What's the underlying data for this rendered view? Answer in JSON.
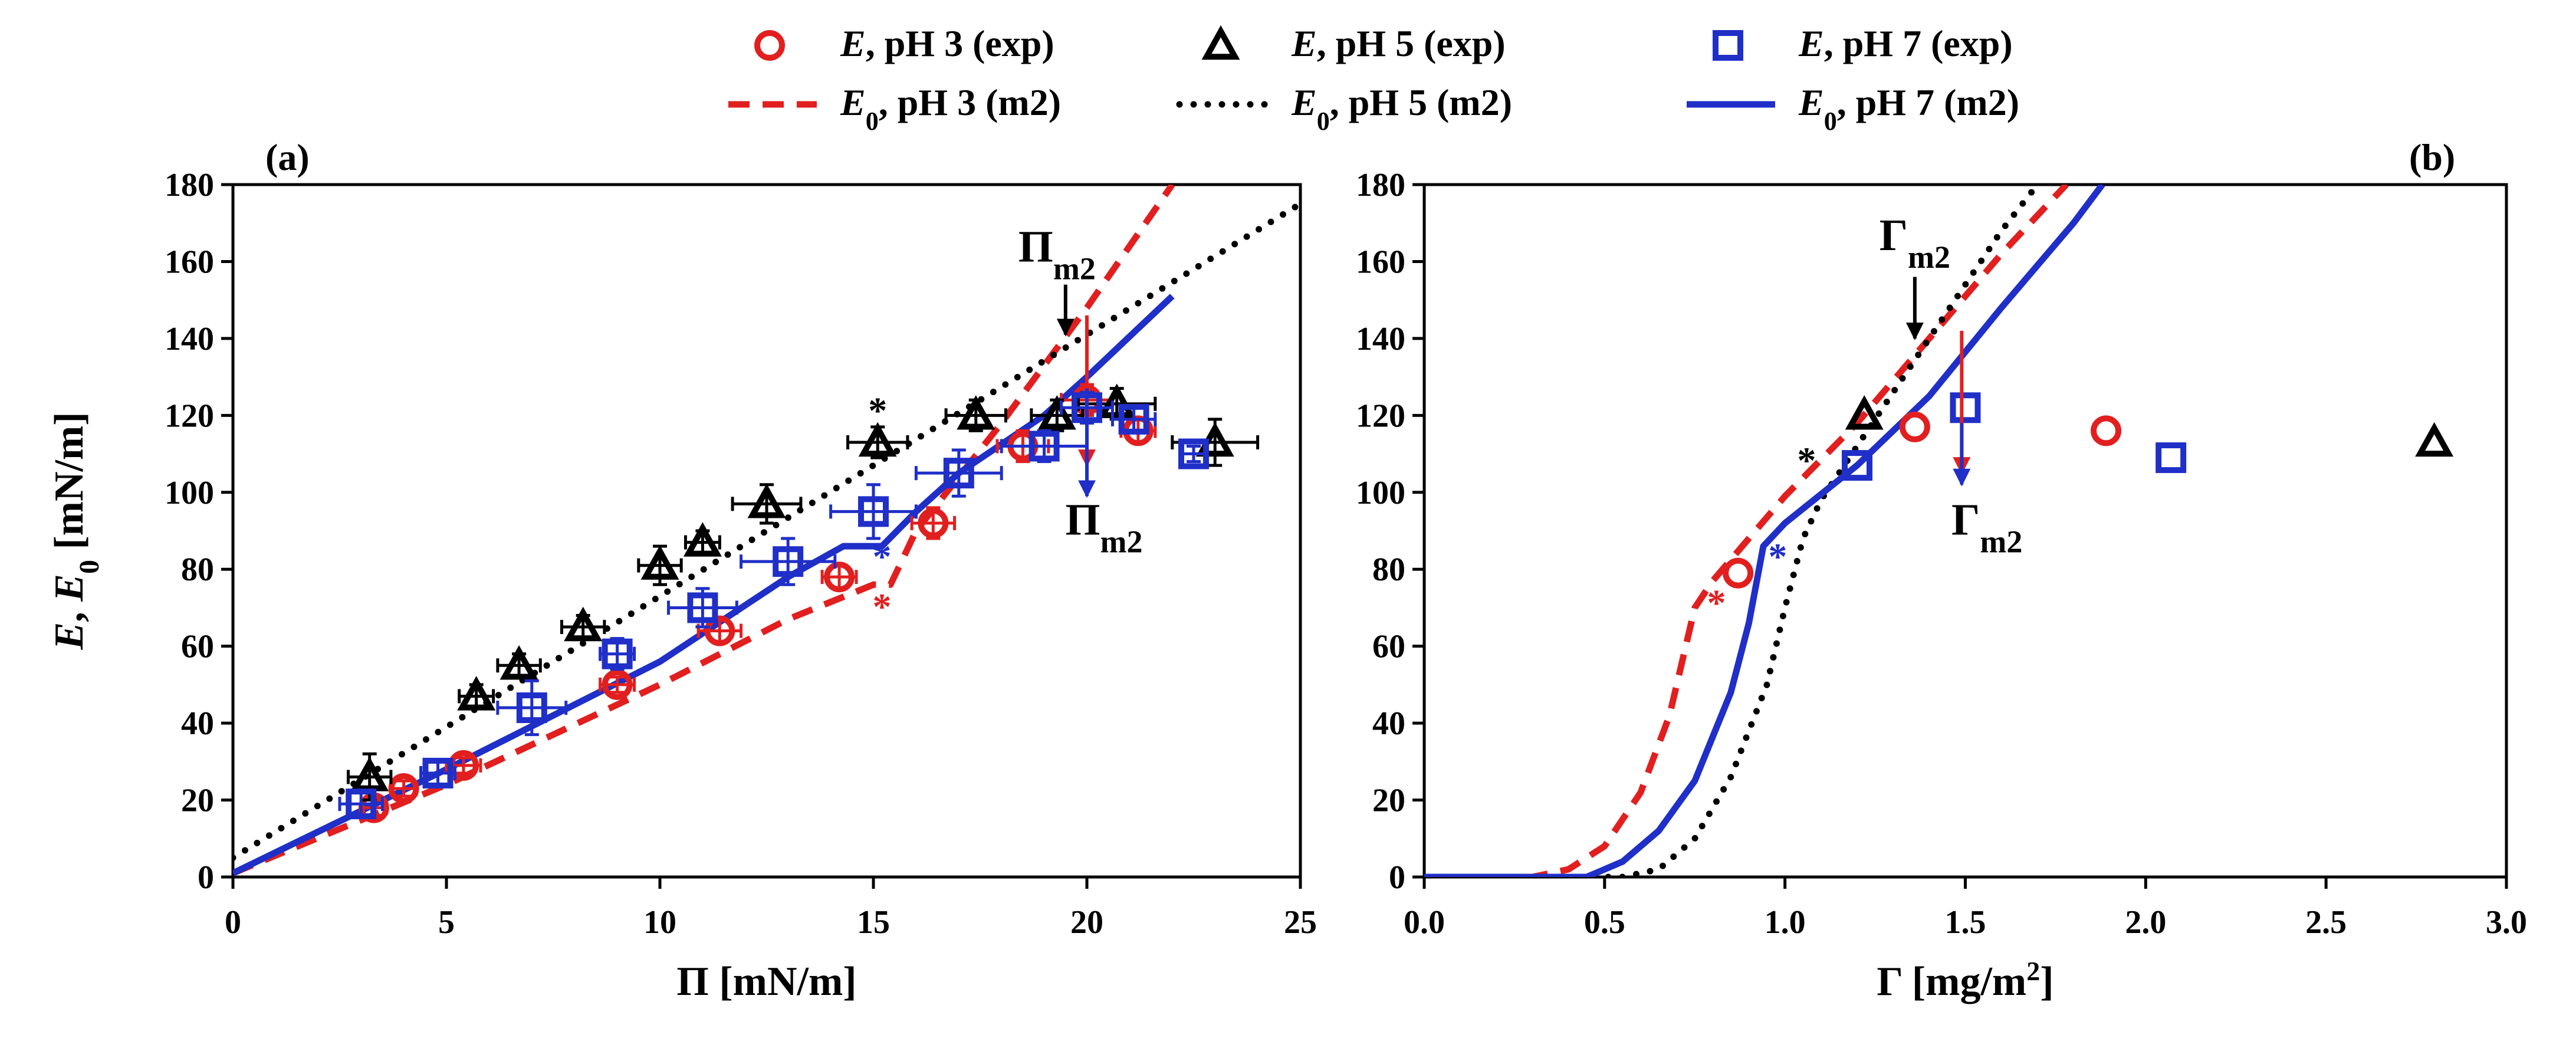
{
  "colors": {
    "pH3": "#e21f1f",
    "pH5": "#000000",
    "pH7": "#1f2fc8"
  },
  "legend": [
    {
      "name": "legend-exp-ph3",
      "kind": "circle",
      "series": "pH3",
      "label_var": "E",
      "label_sub": "",
      "label_rest": ", pH 3 (exp)"
    },
    {
      "name": "legend-exp-ph5",
      "kind": "triangle",
      "series": "pH5",
      "label_var": "E",
      "label_sub": "",
      "label_rest": ", pH 5 (exp)"
    },
    {
      "name": "legend-exp-ph7",
      "kind": "square",
      "series": "pH7",
      "label_var": "E",
      "label_sub": "",
      "label_rest": ", pH 7 (exp)"
    },
    {
      "name": "legend-model-ph3",
      "kind": "dash",
      "series": "pH3",
      "label_var": "E",
      "label_sub": "0",
      "label_rest": ", pH 3 (m2)"
    },
    {
      "name": "legend-model-ph5",
      "kind": "dot",
      "series": "pH5",
      "label_var": "E",
      "label_sub": "0",
      "label_rest": ", pH 5 (m2)"
    },
    {
      "name": "legend-model-ph7",
      "kind": "solid",
      "series": "pH7",
      "label_var": "E",
      "label_sub": "0",
      "label_rest": ", pH 7 (m2)"
    }
  ],
  "chart_data": [
    {
      "type": "scatter",
      "panel_label": "(a)",
      "title": "",
      "xlabel": {
        "main": "Π [mN/m]"
      },
      "ylabel": {
        "v1": "E",
        "mid": ", ",
        "v2": "E",
        "sub": "0",
        "rest": " [mN/m]"
      },
      "xlim": [
        0,
        25
      ],
      "ylim": [
        0,
        180
      ],
      "xticks": [
        0,
        5,
        10,
        15,
        20,
        25
      ],
      "yticks": [
        0,
        20,
        40,
        60,
        80,
        100,
        120,
        140,
        160,
        180
      ],
      "grid": false,
      "legend_position": "top",
      "series": [
        {
          "name": "E, pH 3 (exp)",
          "key": "pH3",
          "kind": "circle",
          "points": [
            [
              3.3,
              18
            ],
            [
              4.0,
              23
            ],
            [
              5.4,
              29
            ],
            [
              9.0,
              50
            ],
            [
              11.4,
              64
            ],
            [
              14.2,
              78
            ],
            [
              16.4,
              92
            ],
            [
              18.5,
              112
            ],
            [
              20.0,
              124
            ],
            [
              21.2,
              116
            ]
          ],
          "xerr": [
            0.3,
            0.3,
            0.4,
            0.4,
            0.5,
            0.4,
            0.5,
            0.6,
            0.6,
            0.4
          ],
          "yerr": [
            2,
            2,
            2,
            2,
            3,
            3,
            4,
            4,
            4,
            3
          ]
        },
        {
          "name": "E, pH 5 (exp)",
          "key": "pH5",
          "kind": "triangle",
          "points": [
            [
              3.2,
              26
            ],
            [
              5.7,
              47
            ],
            [
              6.7,
              55
            ],
            [
              8.2,
              65
            ],
            [
              10.0,
              81
            ],
            [
              11.0,
              87
            ],
            [
              12.5,
              97
            ],
            [
              15.1,
              113
            ],
            [
              17.4,
              120
            ],
            [
              19.3,
              120
            ],
            [
              20.7,
              123
            ],
            [
              23.0,
              113
            ]
          ],
          "xerr": [
            0.5,
            0.4,
            0.5,
            0.5,
            0.5,
            0.4,
            0.8,
            0.7,
            0.7,
            0.6,
            0.9,
            1.0
          ],
          "yerr": [
            6,
            3,
            3,
            3,
            5,
            3,
            5,
            4,
            4,
            4,
            4,
            6
          ]
        },
        {
          "name": "E, pH 7 (exp)",
          "key": "pH7",
          "kind": "square",
          "points": [
            [
              3.0,
              19
            ],
            [
              4.8,
              27
            ],
            [
              7.0,
              44
            ],
            [
              9.0,
              58
            ],
            [
              11.0,
              70
            ],
            [
              13.0,
              82
            ],
            [
              15.0,
              95
            ],
            [
              17.0,
              105
            ],
            [
              19.0,
              112
            ],
            [
              20.0,
              122
            ],
            [
              21.1,
              119
            ],
            [
              22.5,
              110
            ]
          ],
          "xerr": [
            0.5,
            0.4,
            0.8,
            0.4,
            0.8,
            1.1,
            1.0,
            1.0,
            1.0,
            0.6,
            0.5,
            0.3
          ],
          "yerr": [
            3,
            3,
            7,
            4,
            5,
            6,
            7,
            6,
            4,
            4,
            3,
            2
          ]
        },
        {
          "name": "E0, pH 3 (m2)",
          "key": "pH3",
          "kind": "dash",
          "points": [
            [
              0,
              1
            ],
            [
              5,
              24
            ],
            [
              10,
              50
            ],
            [
              13,
              67
            ],
            [
              15,
              76
            ],
            [
              15.4,
              76
            ],
            [
              16.0,
              90
            ],
            [
              17.0,
              104
            ],
            [
              18.0,
              118
            ],
            [
              19.0,
              133
            ],
            [
              20.0,
              148
            ],
            [
              22.0,
              180
            ]
          ]
        },
        {
          "name": "E0, pH 5 (m2)",
          "key": "pH5",
          "kind": "dot",
          "points": [
            [
              0,
              5
            ],
            [
              25,
              175
            ]
          ]
        },
        {
          "name": "E0, pH 7 (m2)",
          "key": "pH7",
          "kind": "solid",
          "points": [
            [
              0,
              1
            ],
            [
              5,
              28
            ],
            [
              10,
              56
            ],
            [
              13,
              78
            ],
            [
              14.3,
              86
            ],
            [
              15.2,
              86
            ],
            [
              16.0,
              95
            ],
            [
              17.0,
              105
            ],
            [
              19.0,
              120
            ],
            [
              20.0,
              130
            ],
            [
              22.0,
              151
            ]
          ]
        }
      ],
      "annotations": [
        {
          "name": "pi-m2-upper-label",
          "main": "Π",
          "sub": "m2",
          "x": 19.3,
          "y": 160,
          "color": "pH5"
        },
        {
          "name": "pi-m2-lower-label",
          "main": "Π",
          "sub": "m2",
          "x": 20.4,
          "y": 89,
          "color": "pH5"
        },
        {
          "name": "star-ph5",
          "text": "*",
          "x": 15.1,
          "y": 118,
          "color": "pH5"
        },
        {
          "name": "star-ph7",
          "text": "*",
          "x": 15.2,
          "y": 80,
          "color": "pH7"
        },
        {
          "name": "star-ph3",
          "text": "*",
          "x": 15.2,
          "y": 67,
          "color": "pH3"
        }
      ],
      "arrows": [
        {
          "name": "pi-m2-down-arrow-black",
          "color": "pH5",
          "from": [
            19.5,
            154
          ],
          "to": [
            19.5,
            141
          ]
        },
        {
          "name": "pi-m2-down-arrow-red",
          "color": "pH3",
          "from": [
            20.0,
            146
          ],
          "to": [
            20.0,
            107
          ]
        },
        {
          "name": "pi-m2-down-arrow-blue",
          "color": "pH7",
          "from": [
            20.0,
            127
          ],
          "to": [
            20.0,
            99
          ]
        }
      ]
    },
    {
      "type": "scatter",
      "panel_label": "(b)",
      "title": "",
      "xlabel": {
        "main": "Γ [mg/m",
        "sup": "2",
        "end": "]"
      },
      "ylabel": null,
      "xlim": [
        0.0,
        3.0
      ],
      "ylim": [
        0,
        180
      ],
      "xticks": [
        "0.0",
        "0.5",
        "1.0",
        "1.5",
        "2.0",
        "2.5",
        "3.0"
      ],
      "yticks": [
        0,
        20,
        40,
        60,
        80,
        100,
        120,
        140,
        160,
        180
      ],
      "grid": false,
      "series": [
        {
          "name": "E, pH 3 (exp)",
          "key": "pH3",
          "kind": "circle",
          "points": [
            [
              0.87,
              79
            ],
            [
              1.36,
              117
            ],
            [
              1.89,
              116
            ]
          ]
        },
        {
          "name": "E, pH 5 (exp)",
          "key": "pH5",
          "kind": "triangle",
          "points": [
            [
              1.22,
              120
            ],
            [
              2.8,
              113
            ]
          ]
        },
        {
          "name": "E, pH 7 (exp)",
          "key": "pH7",
          "kind": "square",
          "points": [
            [
              1.2,
              107
            ],
            [
              1.5,
              122
            ],
            [
              2.07,
              109
            ]
          ]
        },
        {
          "name": "E0, pH 3 (m2)",
          "key": "pH3",
          "kind": "dash",
          "points": [
            [
              0.0,
              0
            ],
            [
              0.3,
              0
            ],
            [
              0.4,
              2
            ],
            [
              0.5,
              8
            ],
            [
              0.6,
              22
            ],
            [
              0.68,
              42
            ],
            [
              0.75,
              70
            ],
            [
              0.8,
              77
            ],
            [
              0.9,
              88
            ],
            [
              1.0,
              99
            ],
            [
              1.2,
              118
            ],
            [
              1.4,
              140
            ],
            [
              1.6,
              162
            ],
            [
              1.78,
              180
            ]
          ]
        },
        {
          "name": "E0, pH 5 (m2)",
          "key": "pH5",
          "kind": "dot",
          "points": [
            [
              0.0,
              0
            ],
            [
              0.55,
              0
            ],
            [
              0.65,
              2
            ],
            [
              0.75,
              10
            ],
            [
              0.85,
              26
            ],
            [
              0.95,
              50
            ],
            [
              1.0,
              70
            ],
            [
              1.05,
              88
            ],
            [
              1.1,
              98
            ],
            [
              1.2,
              112
            ],
            [
              1.4,
              140
            ],
            [
              1.6,
              168
            ],
            [
              1.7,
              180
            ]
          ]
        },
        {
          "name": "E0, pH 7 (m2)",
          "key": "pH7",
          "kind": "solid",
          "points": [
            [
              0.0,
              0
            ],
            [
              0.45,
              0
            ],
            [
              0.55,
              4
            ],
            [
              0.65,
              12
            ],
            [
              0.75,
              25
            ],
            [
              0.85,
              48
            ],
            [
              0.9,
              66
            ],
            [
              0.94,
              86
            ],
            [
              1.0,
              92
            ],
            [
              1.2,
              107
            ],
            [
              1.4,
              125
            ],
            [
              1.6,
              148
            ],
            [
              1.8,
              170
            ],
            [
              1.88,
              180
            ]
          ]
        }
      ],
      "annotations": [
        {
          "name": "gamma-m2-upper-label",
          "main": "Γ",
          "sub": "m2",
          "x": 1.36,
          "y": 163,
          "color": "pH5"
        },
        {
          "name": "gamma-m2-lower-label",
          "main": "Γ",
          "sub": "m2",
          "x": 1.56,
          "y": 89,
          "color": "pH5"
        },
        {
          "name": "star-ph5-b",
          "text": "*",
          "x": 1.06,
          "y": 105,
          "color": "pH5"
        },
        {
          "name": "star-ph7-b",
          "text": "*",
          "x": 0.98,
          "y": 80,
          "color": "pH7"
        },
        {
          "name": "star-ph3-b",
          "text": "*",
          "x": 0.81,
          "y": 68,
          "color": "pH3"
        }
      ],
      "arrows": [
        {
          "name": "gamma-m2-down-arrow-black",
          "color": "pH5",
          "from": [
            1.36,
            156
          ],
          "to": [
            1.36,
            140
          ]
        },
        {
          "name": "gamma-m2-down-arrow-red",
          "color": "pH3",
          "from": [
            1.49,
            142
          ],
          "to": [
            1.49,
            105
          ]
        },
        {
          "name": "gamma-m2-down-arrow-blue",
          "color": "pH7",
          "from": [
            1.49,
            118
          ],
          "to": [
            1.49,
            102
          ]
        }
      ]
    }
  ]
}
